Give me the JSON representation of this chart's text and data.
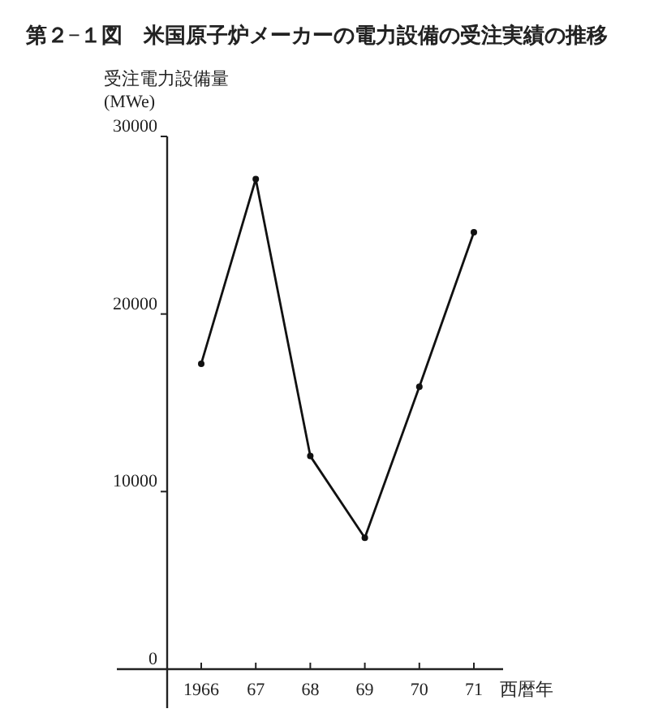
{
  "chart_data": {
    "type": "line",
    "title": "第２−１図　米国原子炉メーカーの電力設備の受注実績の推移",
    "ylabel": "受注電力設備量\n(MWe)",
    "xlabel": "西暦年",
    "categories": [
      "1966",
      "67",
      "68",
      "69",
      "70",
      "71"
    ],
    "series": [
      {
        "color": "#111111",
        "values": [
          17200,
          27600,
          12000,
          7400,
          15900,
          24600
        ]
      }
    ],
    "ylim": [
      0,
      30000
    ],
    "yticks": [
      0,
      10000,
      20000,
      30000
    ],
    "marker": "circle",
    "line_style": "solid",
    "grid": false
  }
}
